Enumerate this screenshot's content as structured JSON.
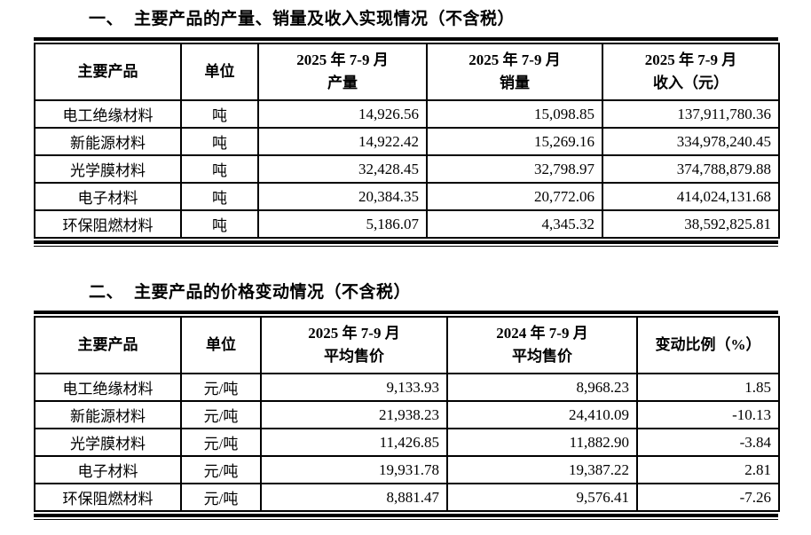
{
  "page": {
    "background": "#ffffff",
    "text_color": "#000000"
  },
  "section1": {
    "title_number": "一、",
    "title": "主要产品的产量、销量及收入实现情况（不含税）",
    "table": {
      "headers": [
        {
          "line1": "主要产品",
          "line2": ""
        },
        {
          "line1": "单位",
          "line2": ""
        },
        {
          "line1": "2025 年 7-9 月",
          "line2": "产量"
        },
        {
          "line1": "2025 年 7-9 月",
          "line2": "销量"
        },
        {
          "line1": "2025 年 7-9 月",
          "line2": "收入（元）"
        }
      ],
      "rows": [
        [
          "电工绝缘材料",
          "吨",
          "14,926.56",
          "15,098.85",
          "137,911,780.36"
        ],
        [
          "新能源材料",
          "吨",
          "14,922.42",
          "15,269.16",
          "334,978,240.45"
        ],
        [
          "光学膜材料",
          "吨",
          "32,428.45",
          "32,798.97",
          "374,788,879.88"
        ],
        [
          "电子材料",
          "吨",
          "20,384.35",
          "20,772.06",
          "414,024,131.68"
        ],
        [
          "环保阻燃材料",
          "吨",
          "5,186.07",
          "4,345.32",
          "38,592,825.81"
        ]
      ]
    }
  },
  "section2": {
    "title_number": "二、",
    "title": "主要产品的价格变动情况（不含税）",
    "table": {
      "headers": [
        {
          "line1": "主要产品",
          "line2": ""
        },
        {
          "line1": "单位",
          "line2": ""
        },
        {
          "line1": "2025 年 7-9 月",
          "line2": "平均售价"
        },
        {
          "line1": "2024 年 7-9 月",
          "line2": "平均售价"
        },
        {
          "line1": "变动比例（%）",
          "line2": ""
        }
      ],
      "rows": [
        [
          "电工绝缘材料",
          "元/吨",
          "9,133.93",
          "8,968.23",
          "1.85"
        ],
        [
          "新能源材料",
          "元/吨",
          "21,938.23",
          "24,410.09",
          "-10.13"
        ],
        [
          "光学膜材料",
          "元/吨",
          "11,426.85",
          "11,882.90",
          "-3.84"
        ],
        [
          "电子材料",
          "元/吨",
          "19,931.78",
          "19,387.22",
          "2.81"
        ],
        [
          "环保阻燃材料",
          "元/吨",
          "8,881.47",
          "9,576.41",
          "-7.26"
        ]
      ]
    }
  }
}
